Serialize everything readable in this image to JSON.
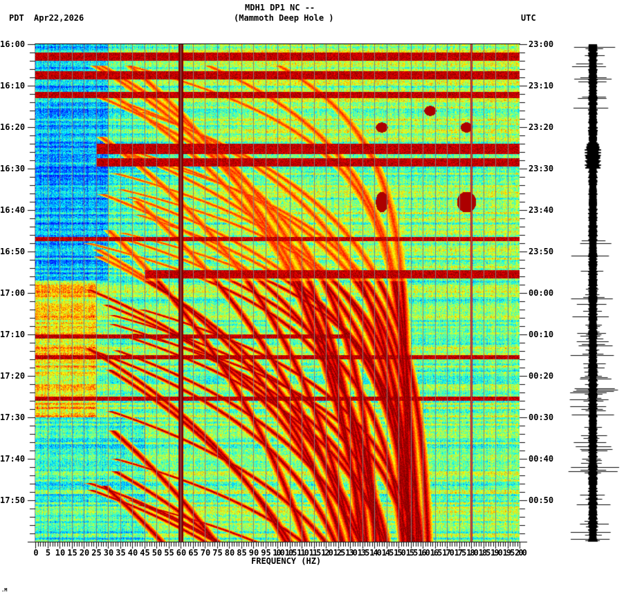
{
  "header": {
    "station_line": "MDH1 DP1 NC --",
    "location_line": "(Mammoth Deep Hole )",
    "left_timezone": "PDT",
    "date": "Apr22,2026",
    "right_timezone": "UTC"
  },
  "footer": {
    "mark": ".M"
  },
  "colors": {
    "dark_red": "#800000",
    "red": "#e00000",
    "orange": "#ff8000",
    "yellow": "#ffff00",
    "light_green": "#80ff80",
    "cyan": "#00ffff",
    "light_blue": "#00a0ff",
    "blue": "#0060ff",
    "gridline": "#808080",
    "trace": "#000000"
  },
  "chart_data": {
    "type": "heatmap",
    "title": "MDH1 DP1 NC -- (Mammoth Deep Hole ) spectrogram",
    "xlabel": "FREQUENCY (HZ)",
    "ylabel_left": "PDT",
    "ylabel_right": "UTC",
    "xlim": [
      0,
      200
    ],
    "x_ticks": [
      0,
      5,
      10,
      15,
      20,
      25,
      30,
      35,
      40,
      45,
      50,
      55,
      60,
      65,
      70,
      75,
      80,
      85,
      90,
      95,
      100,
      105,
      110,
      115,
      120,
      125,
      130,
      135,
      140,
      145,
      150,
      155,
      160,
      165,
      170,
      175,
      180,
      185,
      190,
      195,
      200
    ],
    "x_minor_tick_step": 1,
    "y_ticks_left": [
      "16:00",
      "16:10",
      "16:20",
      "16:30",
      "16:40",
      "16:50",
      "17:00",
      "17:10",
      "17:20",
      "17:30",
      "17:40",
      "17:50"
    ],
    "y_ticks_right": [
      "23:00",
      "23:10",
      "23:20",
      "23:30",
      "23:40",
      "23:50",
      "00:00",
      "00:10",
      "00:20",
      "00:30",
      "00:40",
      "00:50"
    ],
    "y_minor_tick_step_min": 2,
    "time_range_minutes": 120,
    "gridlines_hz_step": 5,
    "colormap": [
      "#0000ff",
      "#0080ff",
      "#00ffff",
      "#80ff80",
      "#ffff00",
      "#ff8000",
      "#ff0000",
      "#800000"
    ],
    "persistent_lines_hz": [
      60,
      180
    ],
    "strong_bands_min": [
      {
        "start": 2,
        "end": 4,
        "note": "low-freq strong energy"
      },
      {
        "start": 6.5,
        "end": 8.5,
        "note": "low-freq strong energy"
      },
      {
        "start": 11.5,
        "end": 13,
        "note": "broadband"
      },
      {
        "start": 24,
        "end": 26.5,
        "note": "broadband strong 25-200Hz"
      },
      {
        "start": 27.5,
        "end": 29.5,
        "note": "broadband strong 25-200Hz"
      },
      {
        "start": 46.5,
        "end": 47.5,
        "note": "broadband"
      },
      {
        "start": 54.5,
        "end": 56.5,
        "note": "broadband strong 45-200Hz"
      },
      {
        "start": 70,
        "end": 71,
        "note": "broadband 0-130Hz"
      },
      {
        "start": 75,
        "end": 76,
        "note": "broadband"
      },
      {
        "start": 85,
        "end": 86,
        "note": "broadband"
      }
    ],
    "transient_blobs": [
      {
        "hz": 143,
        "min": 20,
        "note": "patch"
      },
      {
        "hz": 178,
        "min": 20,
        "note": "patch"
      },
      {
        "hz": 163,
        "min": 16,
        "note": "patch"
      },
      {
        "hz": 143,
        "min": 38,
        "note": "C-shaped signal"
      },
      {
        "hz": 178,
        "min": 38,
        "note": "C-shaped signal large"
      }
    ],
    "chirp_tracks": "many curved dark-red tracks rising from ~20-40 Hz toward higher frequency over time, increasing density after 17:00",
    "seismogram": {
      "position": "right of plot",
      "notes": "vertical helicorder-like trace; burst bursts near 16:00-16:15, 16:25-16:30, and increasing amplitude spikes after 16:55"
    }
  }
}
